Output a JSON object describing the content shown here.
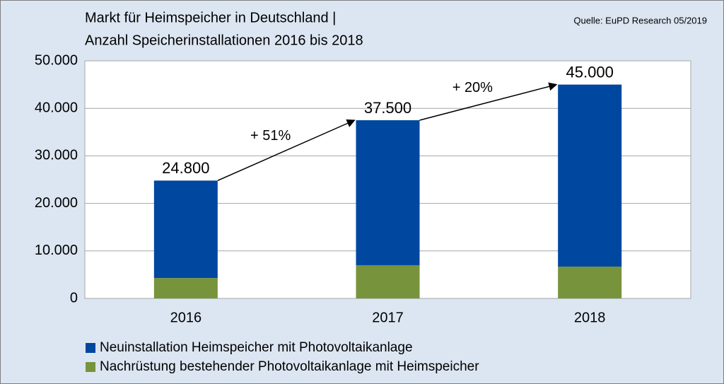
{
  "chart_data": {
    "type": "stacked_bar",
    "title": "Markt für Heimspeicher in Deutschland |",
    "subtitle": "Anzahl Speicherinstallationen 2016 bis 2018",
    "source": "Quelle:  EuPD Research 05/2019",
    "categories": [
      "2016",
      "2017",
      "2018"
    ],
    "series": [
      {
        "name": "Neuinstallation Heimspeicher mit Photovoltaikanlage",
        "color": "#0047a0",
        "values": [
          20500,
          30500,
          38300
        ]
      },
      {
        "name": "Nachrüstung bestehender Photovoltaikanlage mit Heimspeicher",
        "color": "#77933c",
        "values": [
          4300,
          7000,
          6700
        ]
      }
    ],
    "totals": {
      "values": [
        24800,
        37500,
        45000
      ],
      "value_labels": [
        "24.800",
        "37.500",
        "45.000"
      ]
    },
    "growth_labels": [
      "+ 51%",
      "+ 20%"
    ],
    "ylim": [
      0,
      50000
    ],
    "yticks": [
      0,
      {
        "value": 10000,
        "label": "10.000"
      },
      {
        "value": 20000,
        "label": "20.000"
      },
      {
        "value": 30000,
        "label": "30.000"
      },
      {
        "value": 40000,
        "label": "40.000"
      },
      {
        "value": 50000,
        "label": "50.000"
      }
    ],
    "grid": true
  }
}
